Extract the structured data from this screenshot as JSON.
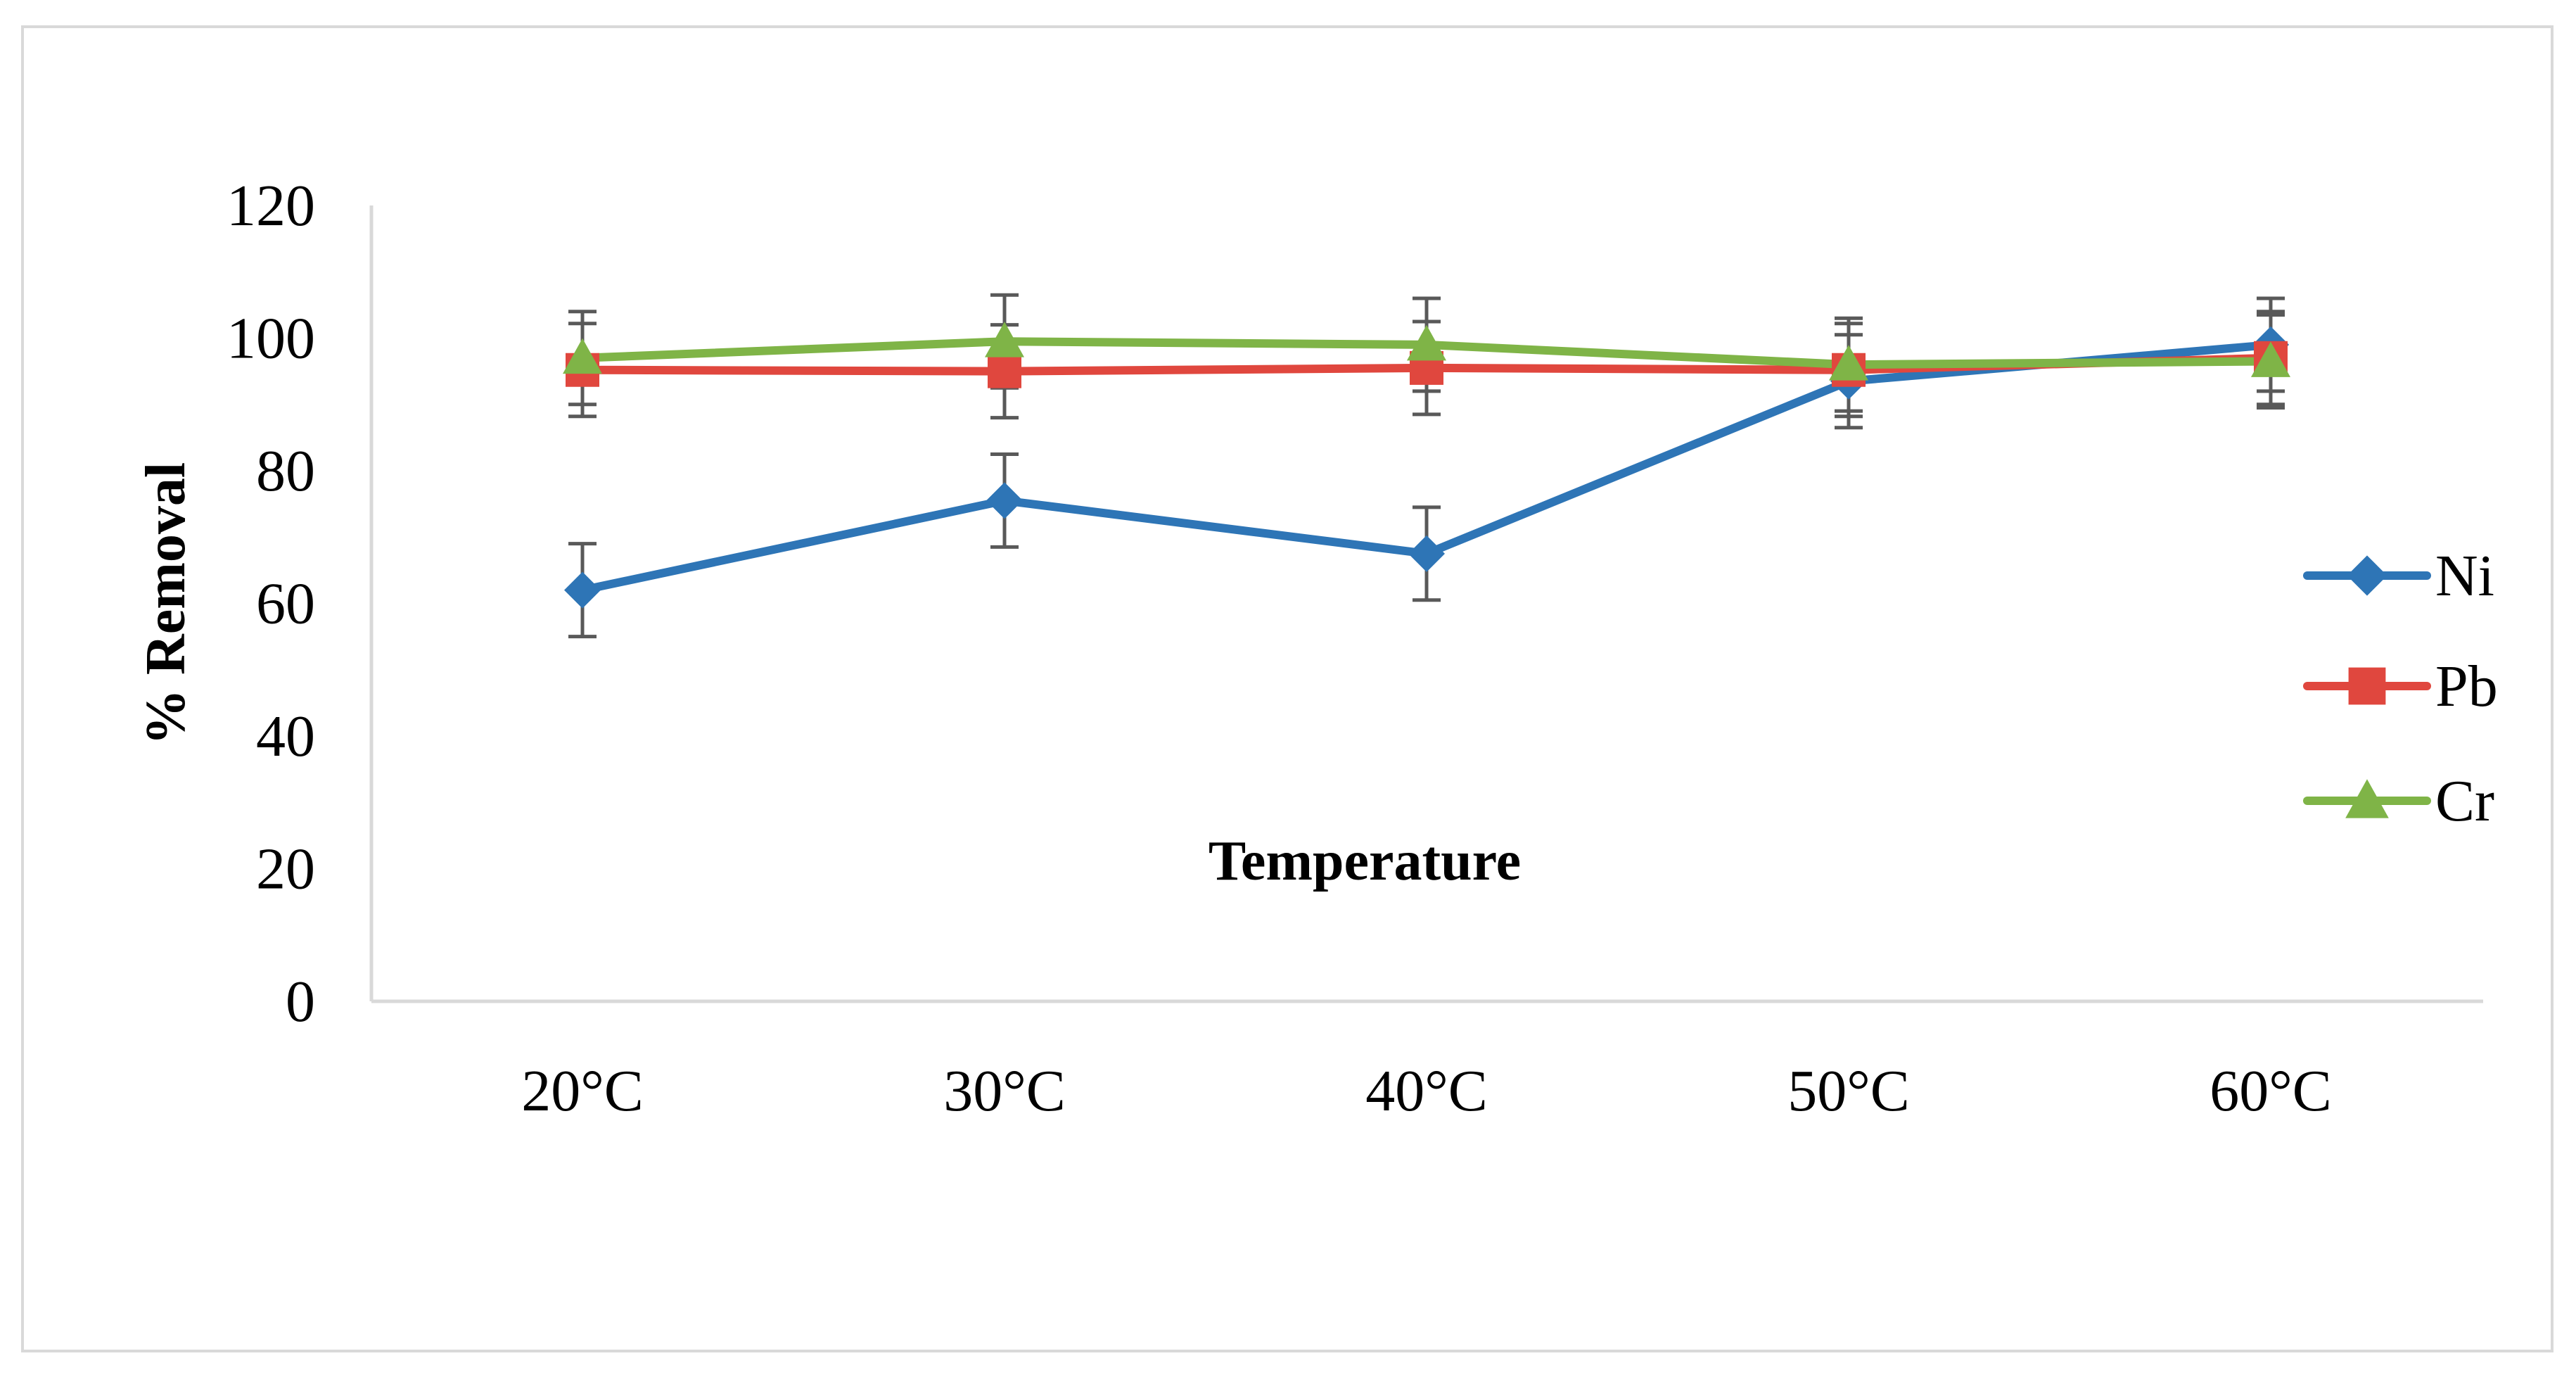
{
  "chart_data": {
    "type": "line",
    "title": "",
    "xlabel": "Temperature",
    "ylabel": "% Removal",
    "categories": [
      "20°C",
      "30°C",
      "40°C",
      "50°C",
      "60°C"
    ],
    "ylim": [
      0,
      120
    ],
    "yticks": [
      0,
      20,
      40,
      60,
      80,
      100,
      120
    ],
    "grid": false,
    "legend_position": "right",
    "error_bar": 7,
    "series": [
      {
        "name": "Ni",
        "color": "#2e75b6",
        "marker": "diamond",
        "values": [
          62,
          75.5,
          67.5,
          93.5,
          99
        ]
      },
      {
        "name": "Pb",
        "color": "#e0473e",
        "marker": "square",
        "values": [
          95.2,
          95,
          95.5,
          95.2,
          97
        ]
      },
      {
        "name": "Cr",
        "color": "#7fb447",
        "marker": "triangle",
        "values": [
          97,
          99.5,
          99,
          96,
          96.5
        ]
      }
    ]
  }
}
